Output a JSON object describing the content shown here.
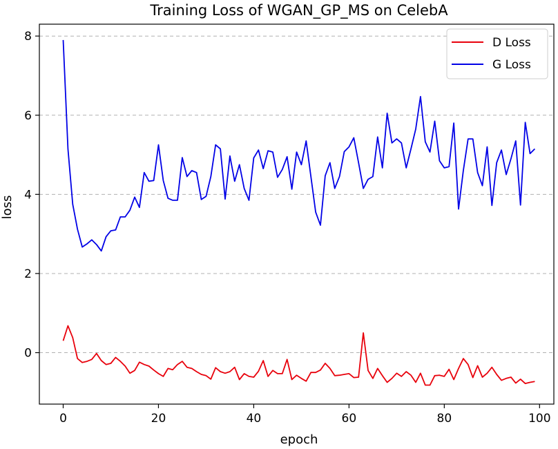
{
  "colors": {
    "d_loss": "#e8000b",
    "g_loss": "#0000e6",
    "grid": "#b0b0b0"
  },
  "chart_data": {
    "type": "line",
    "title": "Training Loss of WGAN_GP_MS on CelebA",
    "xlabel": "epoch",
    "ylabel": "loss",
    "xlim": [
      -5,
      103
    ],
    "ylim": [
      -1.3,
      8.3
    ],
    "xticks": [
      0,
      20,
      40,
      60,
      80,
      100
    ],
    "yticks": [
      0,
      2,
      4,
      6,
      8
    ],
    "grid": "y-dashed",
    "legend_position": "top-right",
    "series": [
      {
        "name": "D Loss",
        "color": "#e8000b",
        "x": [
          0,
          1,
          2,
          3,
          4,
          5,
          6,
          7,
          8,
          9,
          10,
          11,
          12,
          13,
          14,
          15,
          16,
          17,
          18,
          19,
          20,
          21,
          22,
          23,
          24,
          25,
          26,
          27,
          28,
          29,
          30,
          31,
          32,
          33,
          34,
          35,
          36,
          37,
          38,
          39,
          40,
          41,
          42,
          43,
          44,
          45,
          46,
          47,
          48,
          49,
          50,
          51,
          52,
          53,
          54,
          55,
          56,
          57,
          58,
          59,
          60,
          61,
          62,
          63,
          64,
          65,
          66,
          67,
          68,
          69,
          70,
          71,
          72,
          73,
          74,
          75,
          76,
          77,
          78,
          79,
          80,
          81,
          82,
          83,
          84,
          85,
          86,
          87,
          88,
          89,
          90,
          91,
          92,
          93,
          94,
          95,
          96,
          97,
          98,
          99
        ],
        "values": [
          0.3,
          0.68,
          0.38,
          -0.15,
          -0.25,
          -0.22,
          -0.17,
          -0.02,
          -0.2,
          -0.3,
          -0.27,
          -0.12,
          -0.22,
          -0.34,
          -0.52,
          -0.45,
          -0.24,
          -0.3,
          -0.34,
          -0.44,
          -0.53,
          -0.6,
          -0.4,
          -0.43,
          -0.3,
          -0.22,
          -0.37,
          -0.4,
          -0.48,
          -0.55,
          -0.58,
          -0.67,
          -0.38,
          -0.48,
          -0.52,
          -0.48,
          -0.37,
          -0.68,
          -0.53,
          -0.6,
          -0.62,
          -0.47,
          -0.2,
          -0.6,
          -0.45,
          -0.53,
          -0.53,
          -0.17,
          -0.68,
          -0.57,
          -0.65,
          -0.72,
          -0.5,
          -0.5,
          -0.44,
          -0.27,
          -0.4,
          -0.58,
          -0.57,
          -0.55,
          -0.53,
          -0.63,
          -0.62,
          0.5,
          -0.45,
          -0.65,
          -0.4,
          -0.58,
          -0.75,
          -0.65,
          -0.52,
          -0.6,
          -0.48,
          -0.57,
          -0.75,
          -0.52,
          -0.82,
          -0.82,
          -0.58,
          -0.57,
          -0.6,
          -0.42,
          -0.68,
          -0.4,
          -0.15,
          -0.3,
          -0.63,
          -0.33,
          -0.62,
          -0.52,
          -0.37,
          -0.55,
          -0.7,
          -0.65,
          -0.62,
          -0.77,
          -0.67,
          -0.78,
          -0.75,
          -0.73
        ]
      },
      {
        "name": "G Loss",
        "color": "#0000e6",
        "x": [
          0,
          1,
          2,
          3,
          4,
          5,
          6,
          7,
          8,
          9,
          10,
          11,
          12,
          13,
          14,
          15,
          16,
          17,
          18,
          19,
          20,
          21,
          22,
          23,
          24,
          25,
          26,
          27,
          28,
          29,
          30,
          31,
          32,
          33,
          34,
          35,
          36,
          37,
          38,
          39,
          40,
          41,
          42,
          43,
          44,
          45,
          46,
          47,
          48,
          49,
          50,
          51,
          52,
          53,
          54,
          55,
          56,
          57,
          58,
          59,
          60,
          61,
          62,
          63,
          64,
          65,
          66,
          67,
          68,
          69,
          70,
          71,
          72,
          73,
          74,
          75,
          76,
          77,
          78,
          79,
          80,
          81,
          82,
          83,
          84,
          85,
          86,
          87,
          88,
          89,
          90,
          91,
          92,
          93,
          94,
          95,
          96,
          97,
          98,
          99
        ],
        "values": [
          7.9,
          5.15,
          3.75,
          3.12,
          2.67,
          2.75,
          2.85,
          2.73,
          2.57,
          2.93,
          3.08,
          3.1,
          3.43,
          3.43,
          3.6,
          3.93,
          3.67,
          4.55,
          4.33,
          4.35,
          5.25,
          4.35,
          3.9,
          3.85,
          3.85,
          4.93,
          4.45,
          4.6,
          4.55,
          3.87,
          3.95,
          4.45,
          5.25,
          5.15,
          3.88,
          4.97,
          4.33,
          4.75,
          4.15,
          3.85,
          4.92,
          5.12,
          4.65,
          5.1,
          5.07,
          4.43,
          4.63,
          4.95,
          4.13,
          5.07,
          4.75,
          5.35,
          4.45,
          3.55,
          3.22,
          4.47,
          4.8,
          4.15,
          4.45,
          5.08,
          5.2,
          5.43,
          4.8,
          4.15,
          4.38,
          4.45,
          5.45,
          4.67,
          6.05,
          5.3,
          5.4,
          5.3,
          4.67,
          5.15,
          5.65,
          6.47,
          5.33,
          5.07,
          5.85,
          4.85,
          4.67,
          4.7,
          5.8,
          3.63,
          4.6,
          5.4,
          5.4,
          4.55,
          4.22,
          5.2,
          3.72,
          4.8,
          5.12,
          4.5,
          4.9,
          5.35,
          3.73,
          5.82,
          5.03,
          5.15
        ]
      }
    ]
  }
}
